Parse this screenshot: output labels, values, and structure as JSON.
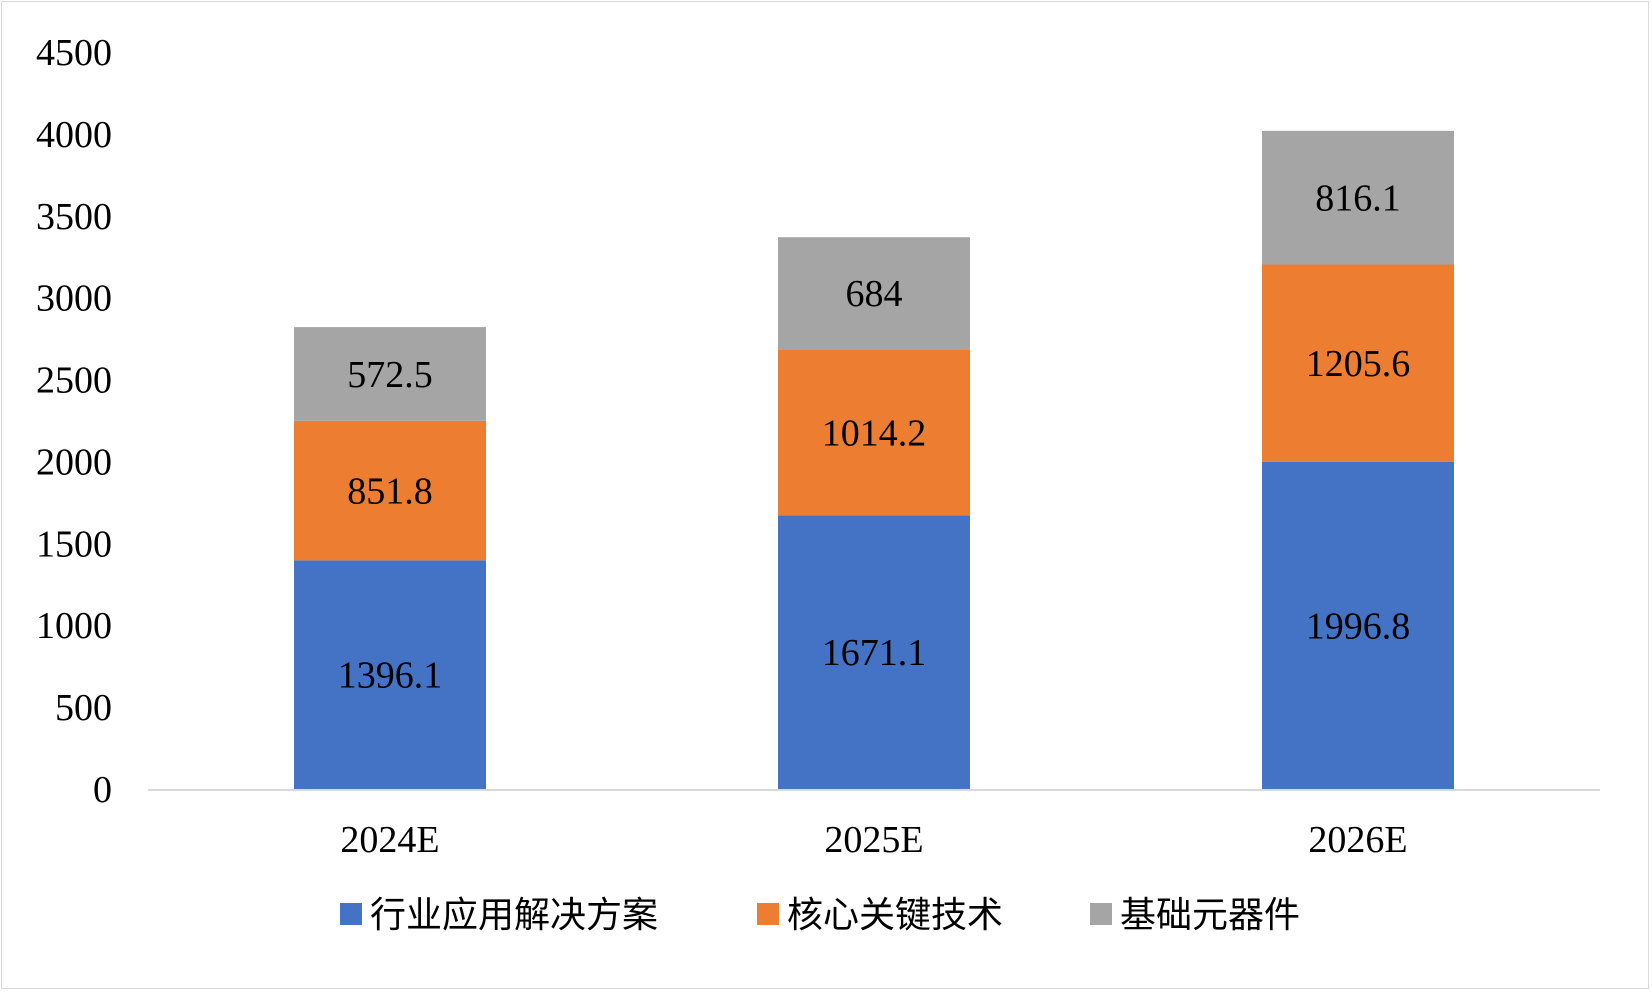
{
  "chart_data": {
    "type": "bar",
    "stacked": true,
    "title": "",
    "xlabel": "",
    "ylabel": "",
    "categories": [
      "2024E",
      "2025E",
      "2026E"
    ],
    "series": [
      {
        "name": "行业应用解决方案",
        "color": "#4472c4",
        "values": [
          1396.1,
          1671.1,
          1996.8
        ],
        "labels": [
          "1396.1",
          "1671.1",
          "1996.8"
        ]
      },
      {
        "name": "核心关键技术",
        "color": "#ed7d31",
        "values": [
          851.8,
          1014.2,
          1205.6
        ],
        "labels": [
          "851.8",
          "1014.2",
          "1205.6"
        ]
      },
      {
        "name": "基础元器件",
        "color": "#a5a5a5",
        "values": [
          572.5,
          684,
          816.1
        ],
        "labels": [
          "572.5",
          "684",
          "816.1"
        ]
      }
    ],
    "ylim": [
      0,
      4500
    ],
    "yticks": [
      0,
      500,
      1000,
      1500,
      2000,
      2500,
      3000,
      3500,
      4000,
      4500
    ],
    "ytick_labels": [
      "0",
      "500",
      "1000",
      "1500",
      "2000",
      "2500",
      "3000",
      "3500",
      "4000",
      "4500"
    ],
    "grid": false,
    "legend_position": "bottom"
  }
}
